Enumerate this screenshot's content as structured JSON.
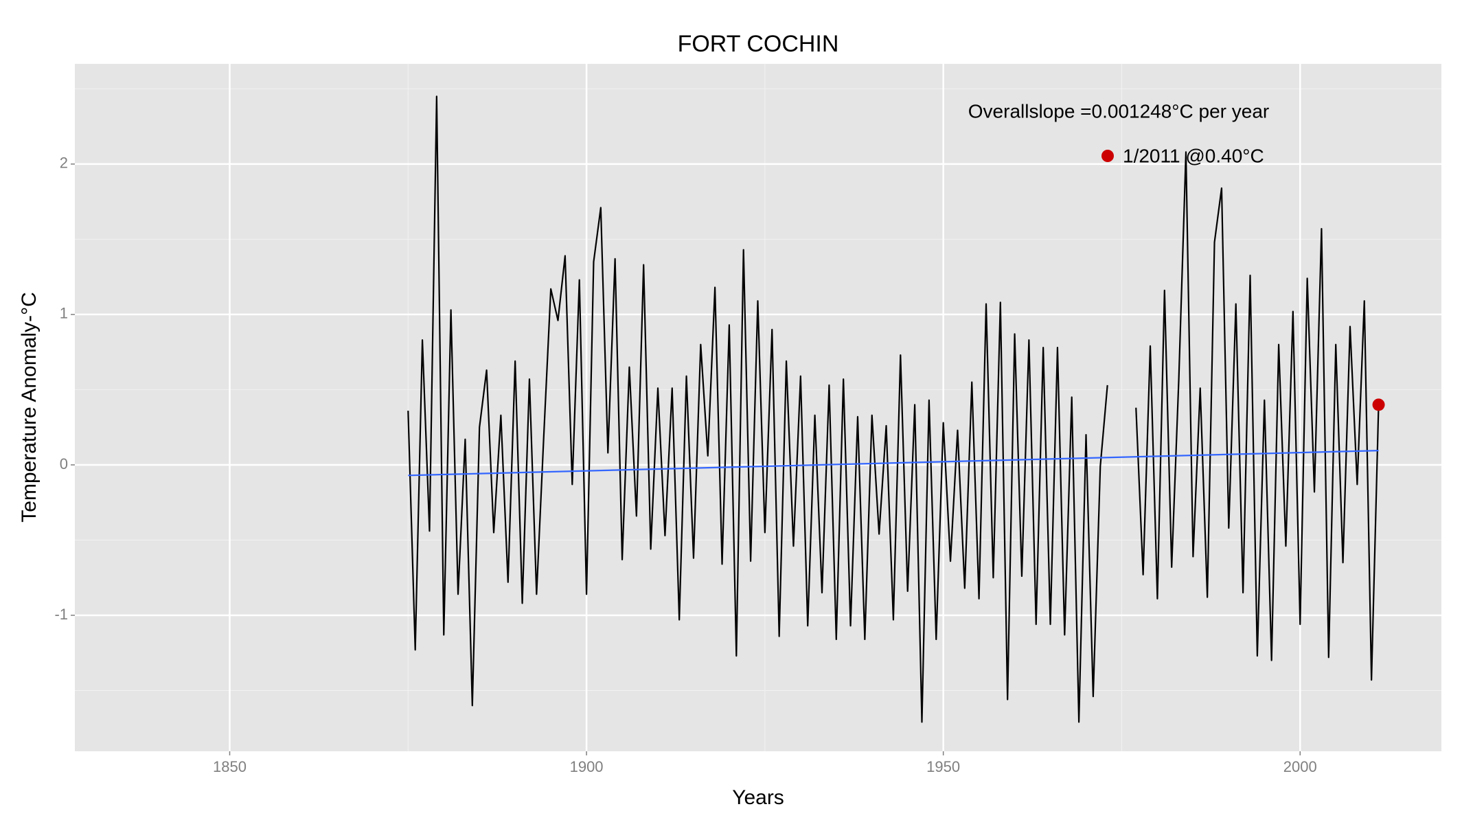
{
  "chart_data": {
    "type": "line",
    "title": "FORT COCHIN",
    "x_label": "Years",
    "y_label": "Temperature Anomaly-°C",
    "xlim": [
      1828.3,
      2019.8
    ],
    "xticks": [
      1850,
      1900,
      1950,
      2000
    ],
    "ylim": [
      -1.904,
      2.666
    ],
    "yticks": [
      -1,
      0,
      1,
      2
    ],
    "grid": true,
    "annotations": [
      "Overallslope =0.001248°C per year",
      "1/2011 @0.40°C"
    ],
    "series": [
      {
        "color": "#000000",
        "x": [
          1875,
          1876,
          1877,
          1878,
          1879,
          1880,
          1881,
          1882,
          1883,
          1884,
          1885,
          1886,
          1887,
          1888,
          1889,
          1890,
          1891,
          1892,
          1893,
          1894,
          1895,
          1896,
          1897,
          1898,
          1899,
          1900,
          1901,
          1902,
          1903,
          1904,
          1905,
          1906,
          1907,
          1908,
          1909,
          1910,
          1911,
          1912,
          1913,
          1914,
          1915,
          1916,
          1917,
          1918,
          1919,
          1920,
          1921,
          1922,
          1923,
          1924,
          1925,
          1926,
          1927,
          1928,
          1929,
          1930,
          1931,
          1932,
          1933,
          1934,
          1935,
          1936,
          1937,
          1938,
          1939,
          1940,
          1941,
          1942,
          1943,
          1944,
          1945,
          1946,
          1947,
          1948,
          1949,
          1950,
          1951,
          1952,
          1953,
          1954,
          1955,
          1956,
          1957,
          1958,
          1959,
          1960,
          1961,
          1962,
          1963,
          1964,
          1965,
          1966,
          1967,
          1968,
          1969,
          1970,
          1971,
          1972,
          1973,
          1974,
          1975,
          1976,
          1977,
          1978,
          1979,
          1980,
          1981,
          1982,
          1983,
          1984,
          1985,
          1986,
          1987,
          1988,
          1989,
          1990,
          1991,
          1992,
          1993,
          1994,
          1995,
          1996,
          1997,
          1998,
          1999,
          2000,
          2001,
          2002,
          2003,
          2004,
          2005,
          2006,
          2007,
          2008,
          2009,
          2010,
          2011
        ],
        "values": [
          0.36,
          -1.23,
          0.83,
          -0.44,
          2.45,
          -1.13,
          1.03,
          -0.86,
          0.17,
          -1.6,
          0.25,
          0.63,
          -0.45,
          0.33,
          -0.78,
          0.69,
          -0.92,
          0.57,
          -0.86,
          0.18,
          1.17,
          0.96,
          1.39,
          -0.13,
          1.23,
          -0.86,
          1.35,
          1.71,
          0.08,
          1.37,
          -0.63,
          0.65,
          -0.34,
          1.33,
          -0.56,
          0.51,
          -0.47,
          0.51,
          -1.03,
          0.59,
          -0.62,
          0.8,
          0.06,
          1.18,
          -0.66,
          0.93,
          -1.27,
          1.43,
          -0.64,
          1.09,
          -0.45,
          0.9,
          -1.14,
          0.69,
          -0.54,
          0.59,
          -1.07,
          0.33,
          -0.85,
          0.53,
          -1.16,
          0.57,
          -1.07,
          0.32,
          -1.16,
          0.33,
          -0.46,
          0.26,
          -1.03,
          0.73,
          -0.84,
          0.4,
          -1.71,
          0.43,
          -1.16,
          0.28,
          -0.64,
          0.23,
          -0.82,
          0.55,
          -0.89,
          1.07,
          -0.75,
          1.08,
          -1.56,
          0.87,
          -0.74,
          0.83,
          -1.06,
          0.78,
          -1.06,
          0.78,
          -1.13,
          0.45,
          -1.71,
          0.2,
          -1.54,
          -0.01,
          0.53,
          null,
          null,
          null,
          0.38,
          -0.73,
          0.79,
          -0.89,
          1.16,
          -0.68,
          0.57,
          2.08,
          -0.61,
          0.51,
          -0.88,
          1.48,
          1.84,
          -0.42,
          1.07,
          -0.85,
          1.26,
          -1.27,
          0.43,
          -1.3,
          0.8,
          -0.54,
          1.02,
          -1.06,
          1.24,
          -0.18,
          1.57,
          -1.28,
          0.8,
          -0.65,
          0.92,
          -0.13,
          1.09,
          -1.43,
          0.4
        ]
      },
      {
        "color": "#3366ff",
        "x": [
          1875,
          2011
        ],
        "values": [
          -0.07,
          0.095
        ]
      },
      {
        "color": "#cc0000",
        "x": [
          2011
        ],
        "values": [
          0.4
        ],
        "marker": true
      }
    ]
  }
}
